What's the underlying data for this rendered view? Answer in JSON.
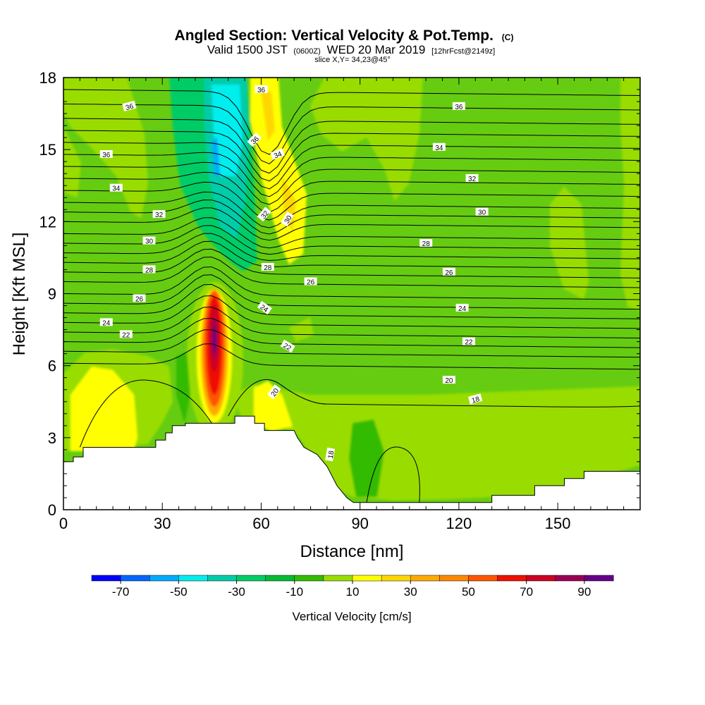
{
  "title": {
    "main": "Angled Section: Vertical Velocity & Pot.Temp.",
    "unit": "(C)",
    "valid_prefix": "Valid 1500 JST",
    "utc": "(0600Z)",
    "date": "WED 20 Mar 2019",
    "forecast": "[12hrFcst@2149z]",
    "slice": "slice X,Y= 34,23@45°"
  },
  "chart_data": {
    "type": "contour-section",
    "xlabel": "Distance [nm]",
    "ylabel": "Height [Kft MSL]",
    "xlim": [
      0,
      175
    ],
    "ylim": [
      0,
      18
    ],
    "xticks": [
      0,
      30,
      60,
      90,
      120,
      150
    ],
    "yticks": [
      0,
      3,
      6,
      9,
      12,
      15,
      18
    ],
    "colorbar": {
      "title": "Vertical Velocity [cm/s]",
      "edges": [
        -80,
        -70,
        -60,
        -50,
        -40,
        -30,
        -20,
        -10,
        0,
        10,
        20,
        30,
        40,
        50,
        60,
        70,
        80,
        90,
        100
      ],
      "labels": [
        "-70",
        "-50",
        "-30",
        "-10",
        "10",
        "30",
        "50",
        "70",
        "90"
      ],
      "colors": [
        "#0000ff",
        "#0066ff",
        "#00aaff",
        "#00eeee",
        "#00ccaa",
        "#00cc66",
        "#00bb33",
        "#33bb00",
        "#99dd00",
        "#ffff00",
        "#ffd700",
        "#ffaa00",
        "#ff8800",
        "#ff5500",
        "#ee1100",
        "#cc0022",
        "#990055",
        "#660088"
      ]
    },
    "terrain": [
      [
        0,
        2
      ],
      [
        3,
        2
      ],
      [
        3,
        2.2
      ],
      [
        6,
        2.2
      ],
      [
        6,
        2.6
      ],
      [
        28,
        2.6
      ],
      [
        28,
        2.9
      ],
      [
        31,
        2.9
      ],
      [
        31,
        3.2
      ],
      [
        33,
        3.2
      ],
      [
        33,
        3.5
      ],
      [
        37,
        3.5
      ],
      [
        37,
        3.6
      ],
      [
        52,
        3.6
      ],
      [
        52,
        3.9
      ],
      [
        58,
        3.9
      ],
      [
        58,
        3.6
      ],
      [
        61,
        3.6
      ],
      [
        61,
        3.3
      ],
      [
        65,
        3.3
      ],
      [
        70,
        3.3
      ],
      [
        71,
        3
      ],
      [
        73,
        2.6
      ],
      [
        77,
        2.3
      ],
      [
        80,
        1.8
      ],
      [
        83,
        1
      ],
      [
        86,
        0.5
      ],
      [
        88,
        0.3
      ],
      [
        130,
        0.3
      ],
      [
        130,
        0.6
      ],
      [
        143,
        0.6
      ],
      [
        143,
        1
      ],
      [
        152,
        1
      ],
      [
        152,
        1.3
      ],
      [
        158,
        1.3
      ],
      [
        158,
        1.6
      ],
      [
        175,
        1.6
      ]
    ],
    "isotherm_labels": [
      {
        "label": "36",
        "x": 60,
        "y": 17.5,
        "rot": 0
      },
      {
        "label": "36",
        "x": 20,
        "y": 16.8,
        "rot": -15
      },
      {
        "label": "36",
        "x": 120,
        "y": 16.8,
        "rot": 0
      },
      {
        "label": "36",
        "x": 58,
        "y": 15.4,
        "rot": -45
      },
      {
        "label": "36",
        "x": 13,
        "y": 14.8,
        "rot": 0
      },
      {
        "label": "34",
        "x": 65,
        "y": 14.8,
        "rot": -20
      },
      {
        "label": "34",
        "x": 114,
        "y": 15.1,
        "rot": 0
      },
      {
        "label": "34",
        "x": 16,
        "y": 13.4,
        "rot": 0
      },
      {
        "label": "32",
        "x": 124,
        "y": 13.8,
        "rot": 0
      },
      {
        "label": "32",
        "x": 29,
        "y": 12.3,
        "rot": 0
      },
      {
        "label": "32",
        "x": 61,
        "y": 12.3,
        "rot": -50
      },
      {
        "label": "30",
        "x": 68,
        "y": 12.1,
        "rot": -60
      },
      {
        "label": "30",
        "x": 127,
        "y": 12.4,
        "rot": 0
      },
      {
        "label": "30",
        "x": 26,
        "y": 11.2,
        "rot": 0
      },
      {
        "label": "28",
        "x": 110,
        "y": 11.1,
        "rot": 0
      },
      {
        "label": "28",
        "x": 62,
        "y": 10.1,
        "rot": 0
      },
      {
        "label": "28",
        "x": 26,
        "y": 10,
        "rot": 0
      },
      {
        "label": "26",
        "x": 117,
        "y": 9.9,
        "rot": 0
      },
      {
        "label": "26",
        "x": 75,
        "y": 9.5,
        "rot": 0
      },
      {
        "label": "26",
        "x": 23,
        "y": 8.8,
        "rot": 0
      },
      {
        "label": "24",
        "x": 121,
        "y": 8.4,
        "rot": 0
      },
      {
        "label": "24",
        "x": 61,
        "y": 8.4,
        "rot": 35
      },
      {
        "label": "24",
        "x": 13,
        "y": 7.8,
        "rot": 0
      },
      {
        "label": "22",
        "x": 19,
        "y": 7.3,
        "rot": 0
      },
      {
        "label": "22",
        "x": 123,
        "y": 7.0,
        "rot": 0
      },
      {
        "label": "22",
        "x": 68,
        "y": 6.8,
        "rot": 30
      },
      {
        "label": "20",
        "x": 117,
        "y": 5.4,
        "rot": 0
      },
      {
        "label": "20",
        "x": 64,
        "y": 4.9,
        "rot": -55
      },
      {
        "label": "18",
        "x": 125,
        "y": 4.6,
        "rot": -15
      },
      {
        "label": "18",
        "x": 81,
        "y": 2.3,
        "rot": -80
      }
    ]
  },
  "colors": {
    "base_green": "#66cc11"
  }
}
